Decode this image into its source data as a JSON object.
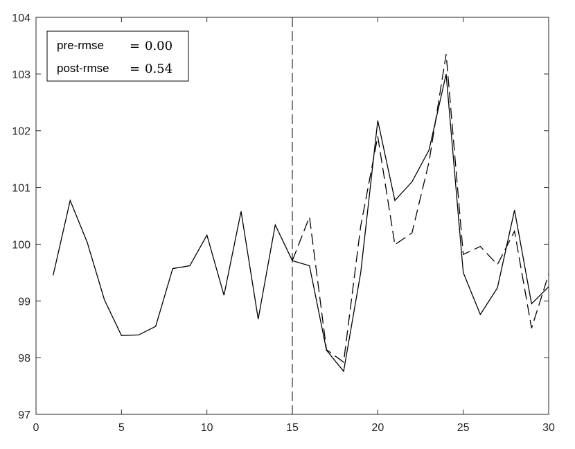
{
  "chart_data": {
    "type": "line",
    "title": "",
    "xlabel": "",
    "ylabel": "",
    "xlim": [
      0,
      30
    ],
    "ylim": [
      97,
      104
    ],
    "xticks": [
      0,
      5,
      10,
      15,
      20,
      25,
      30
    ],
    "yticks": [
      97,
      98,
      99,
      100,
      101,
      102,
      103,
      104
    ],
    "grid": false,
    "vline_x": 15,
    "series": [
      {
        "style": "solid",
        "x": [
          1,
          2,
          3,
          4,
          5,
          6,
          7,
          8,
          9,
          10,
          11,
          12,
          13,
          14,
          15,
          16,
          17,
          18,
          19,
          20,
          21,
          22,
          23,
          24,
          25,
          26,
          27,
          28,
          29,
          30
        ],
        "values": [
          99.45,
          100.77,
          100.03,
          99.02,
          98.39,
          98.4,
          98.55,
          99.57,
          99.62,
          100.16,
          99.1,
          100.58,
          98.68,
          100.34,
          99.71,
          99.62,
          98.13,
          97.76,
          99.5,
          102.18,
          100.77,
          101.1,
          101.66,
          103.0,
          99.5,
          98.76,
          99.23,
          100.6,
          98.95,
          99.25
        ]
      },
      {
        "style": "dashed",
        "x": [
          15,
          16,
          17,
          18,
          19,
          20,
          21,
          22,
          23,
          24,
          25,
          26,
          27,
          28,
          29,
          30
        ],
        "values": [
          99.71,
          100.48,
          98.14,
          97.92,
          100.32,
          101.9,
          99.99,
          100.2,
          101.45,
          103.35,
          99.82,
          99.96,
          99.64,
          100.23,
          98.52,
          99.47
        ]
      }
    ],
    "legend": {
      "position": "top-left",
      "entries": [
        {
          "label": "pre-rmse",
          "value": "0.00"
        },
        {
          "label": "post-rmse",
          "value": "0.54"
        }
      ]
    }
  }
}
